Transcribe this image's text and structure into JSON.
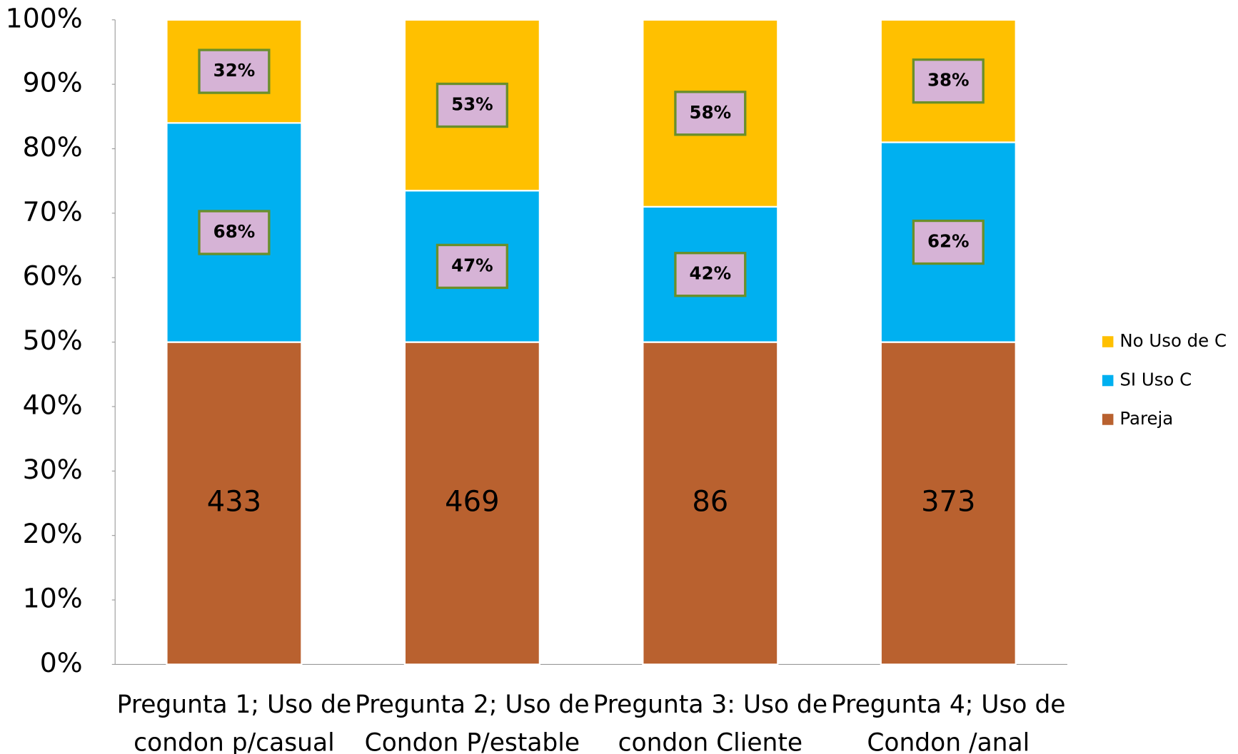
{
  "chart_data": {
    "type": "stacked_bar",
    "categories": [
      [
        "Pregunta 1; Uso de",
        "condon p/casual"
      ],
      [
        "Pregunta 2; Uso de",
        "Condon P/estable"
      ],
      [
        "Pregunta 3: Uso de",
        "condon Cliente"
      ],
      [
        "Pregunta 4; Uso de",
        "Condon /anal"
      ]
    ],
    "series": [
      {
        "name": "Pareja",
        "color": "#b9612f",
        "values": [
          50,
          50,
          50,
          50
        ],
        "value_labels": [
          "433",
          "469",
          "86",
          "373"
        ]
      },
      {
        "name": "SI Uso C",
        "color": "#00b0f0",
        "values": [
          34,
          23.5,
          21,
          31
        ],
        "value_labels": [
          "68%",
          "47%",
          "42%",
          "62%"
        ]
      },
      {
        "name": "No Uso de C",
        "color": "#ffc000",
        "values": [
          16,
          26.5,
          29,
          19
        ],
        "value_labels": [
          "32%",
          "53%",
          "58%",
          "38%"
        ]
      }
    ],
    "ylim": [
      0,
      100
    ],
    "yticks": [
      {
        "value": 0,
        "label": "0%"
      },
      {
        "value": 10,
        "label": "10%"
      },
      {
        "value": 20,
        "label": "20%"
      },
      {
        "value": 30,
        "label": "30%"
      },
      {
        "value": 40,
        "label": "40%"
      },
      {
        "value": 50,
        "label": "50%"
      },
      {
        "value": 60,
        "label": "60%"
      },
      {
        "value": 70,
        "label": "70%"
      },
      {
        "value": 80,
        "label": "80%"
      },
      {
        "value": 90,
        "label": "90%"
      },
      {
        "value": 100,
        "label": "100%"
      }
    ],
    "legend": "right"
  }
}
